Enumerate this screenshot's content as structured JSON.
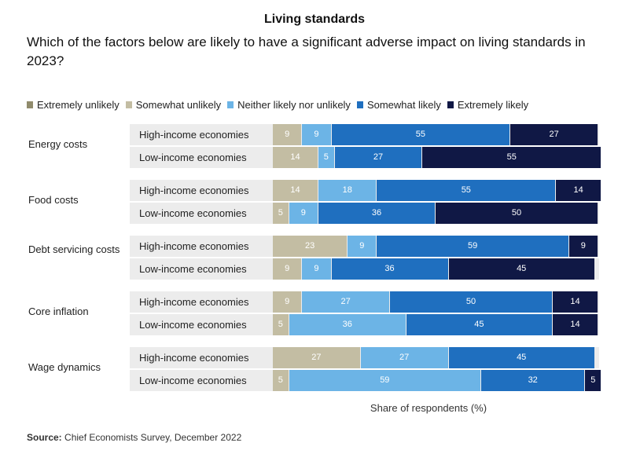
{
  "chart_data": {
    "type": "bar",
    "orientation": "horizontal",
    "stacked": true,
    "title": "Living standards",
    "subtitle": "Which of the factors below are likely to have a significant adverse impact on living standards in 2023?",
    "xlabel": "Share of respondents (%)",
    "source_label": "Source:",
    "source_text": "Chief Economists Survey, December 2022",
    "xlim": [
      0,
      100
    ],
    "categories": [
      "Extremely unlikely",
      "Somewhat unlikely",
      "Neither likely nor unlikely",
      "Somewhat likely",
      "Extremely likely"
    ],
    "colors": [
      "#908b6c",
      "#c3bda3",
      "#6cb4e6",
      "#1f6fbf",
      "#101845"
    ],
    "groups": [
      {
        "label": "Energy costs",
        "rows": [
          {
            "label": "High-income economies",
            "values": [
              0,
              9,
              9,
              55,
              27
            ]
          },
          {
            "label": "Low-income economies",
            "values": [
              0,
              14,
              5,
              27,
              55
            ]
          }
        ]
      },
      {
        "label": "Food costs",
        "rows": [
          {
            "label": "High-income economies",
            "values": [
              0,
              14,
              18,
              55,
              14
            ]
          },
          {
            "label": "Low-income economies",
            "values": [
              0,
              5,
              9,
              36,
              50
            ]
          }
        ]
      },
      {
        "label": "Debt servicing costs",
        "rows": [
          {
            "label": "High-income economies",
            "values": [
              0,
              23,
              9,
              59,
              9
            ]
          },
          {
            "label": "Low-income economies",
            "values": [
              0,
              9,
              9,
              36,
              45
            ]
          }
        ]
      },
      {
        "label": "Core inflation",
        "rows": [
          {
            "label": "High-income economies",
            "values": [
              0,
              9,
              27,
              50,
              14
            ]
          },
          {
            "label": "Low-income economies",
            "values": [
              0,
              5,
              36,
              45,
              14
            ]
          }
        ]
      },
      {
        "label": "Wage dynamics",
        "rows": [
          {
            "label": "High-income economies",
            "values": [
              0,
              27,
              27,
              45,
              0
            ]
          },
          {
            "label": "Low-income economies",
            "values": [
              0,
              5,
              59,
              32,
              5
            ]
          }
        ]
      }
    ]
  }
}
